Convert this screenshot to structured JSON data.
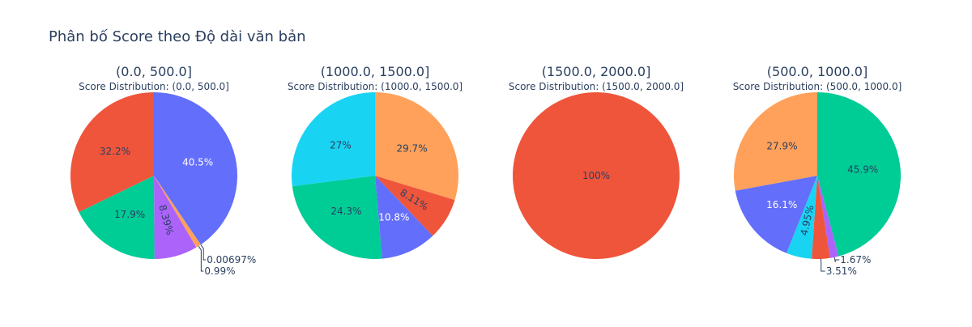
{
  "title": "Phân bố Score theo Độ dài văn bản",
  "colors": {
    "blue": "#636efa",
    "red": "#EF553B",
    "green": "#00cc96",
    "purple": "#ab63fa",
    "orange": "#FFA15A",
    "cyan": "#19d3f3",
    "text_dark": "#2a3f5f"
  },
  "chart_data": [
    {
      "type": "pie",
      "title": "(0.0, 500.0]",
      "subtitle": "Score Distribution: (0.0, 500.0]",
      "slices": [
        {
          "label": "40.5%",
          "value": 40.5,
          "color": "#636efa",
          "label_pos": "inside",
          "label_color": "#ffffff"
        },
        {
          "label": "0.00697%",
          "value": 0.00697,
          "color": "#19d3f3",
          "label_pos": "outside"
        },
        {
          "label": "0.99%",
          "value": 0.99,
          "color": "#FFA15A",
          "label_pos": "outside"
        },
        {
          "label": "8.39%",
          "value": 8.39,
          "color": "#ab63fa",
          "label_pos": "inside",
          "rotate": true
        },
        {
          "label": "17.9%",
          "value": 17.9,
          "color": "#00cc96",
          "label_pos": "inside"
        },
        {
          "label": "32.2%",
          "value": 32.2,
          "color": "#EF553B",
          "label_pos": "inside"
        }
      ]
    },
    {
      "type": "pie",
      "title": "(1000.0, 1500.0]",
      "subtitle": "Score Distribution: (1000.0, 1500.0]",
      "slices": [
        {
          "label": "29.7%",
          "value": 29.7,
          "color": "#FFA15A",
          "label_pos": "inside"
        },
        {
          "label": "8.11%",
          "value": 8.11,
          "color": "#EF553B",
          "label_pos": "inside",
          "rotate": true
        },
        {
          "label": "10.8%",
          "value": 10.8,
          "color": "#636efa",
          "label_pos": "inside",
          "label_color": "#ffffff"
        },
        {
          "label": "24.3%",
          "value": 24.3,
          "color": "#00cc96",
          "label_pos": "inside"
        },
        {
          "label": "27%",
          "value": 27.0,
          "color": "#19d3f3",
          "label_pos": "inside"
        }
      ]
    },
    {
      "type": "pie",
      "title": "(1500.0, 2000.0]",
      "subtitle": "Score Distribution: (1500.0, 2000.0]",
      "slices": [
        {
          "label": "100%",
          "value": 100,
          "color": "#EF553B",
          "label_pos": "inside"
        }
      ]
    },
    {
      "type": "pie",
      "title": "(500.0, 1000.0]",
      "subtitle": "Score Distribution: (500.0, 1000.0]",
      "slices": [
        {
          "label": "45.9%",
          "value": 45.9,
          "color": "#00cc96",
          "label_pos": "inside"
        },
        {
          "label": "1.67%",
          "value": 1.67,
          "color": "#ab63fa",
          "label_pos": "outside"
        },
        {
          "label": "3.51%",
          "value": 3.51,
          "color": "#EF553B",
          "label_pos": "outside"
        },
        {
          "label": "4.95%",
          "value": 4.95,
          "color": "#19d3f3",
          "label_pos": "inside",
          "rotate": true
        },
        {
          "label": "16.1%",
          "value": 16.1,
          "color": "#636efa",
          "label_pos": "inside",
          "label_color": "#ffffff"
        },
        {
          "label": "27.9%",
          "value": 27.9,
          "color": "#FFA15A",
          "label_pos": "inside"
        }
      ]
    }
  ]
}
